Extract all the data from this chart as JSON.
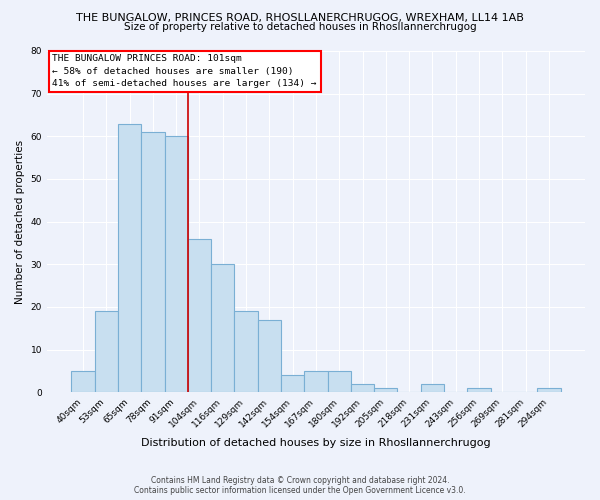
{
  "title": "THE BUNGALOW, PRINCES ROAD, RHOSLLANERCHRUGOG, WREXHAM, LL14 1AB",
  "subtitle": "Size of property relative to detached houses in Rhosllannerchrugog",
  "xlabel": "Distribution of detached houses by size in Rhosllannerchrugog",
  "ylabel": "Number of detached properties",
  "bin_labels": [
    "40sqm",
    "53sqm",
    "65sqm",
    "78sqm",
    "91sqm",
    "104sqm",
    "116sqm",
    "129sqm",
    "142sqm",
    "154sqm",
    "167sqm",
    "180sqm",
    "192sqm",
    "205sqm",
    "218sqm",
    "231sqm",
    "243sqm",
    "256sqm",
    "269sqm",
    "281sqm",
    "294sqm"
  ],
  "bar_heights": [
    5,
    19,
    63,
    61,
    60,
    36,
    30,
    19,
    17,
    4,
    5,
    5,
    2,
    1,
    0,
    2,
    0,
    1,
    0,
    0,
    1
  ],
  "bar_color": "#c8dff0",
  "bar_edge_color": "#7aafd4",
  "vline_color": "#cc0000",
  "ylim": [
    0,
    80
  ],
  "yticks": [
    0,
    10,
    20,
    30,
    40,
    50,
    60,
    70,
    80
  ],
  "annotation_title": "THE BUNGALOW PRINCES ROAD: 101sqm",
  "annotation_line1": "← 58% of detached houses are smaller (190)",
  "annotation_line2": "41% of semi-detached houses are larger (134) →",
  "footer_line1": "Contains HM Land Registry data © Crown copyright and database right 2024.",
  "footer_line2": "Contains public sector information licensed under the Open Government Licence v3.0.",
  "background_color": "#eef2fb"
}
